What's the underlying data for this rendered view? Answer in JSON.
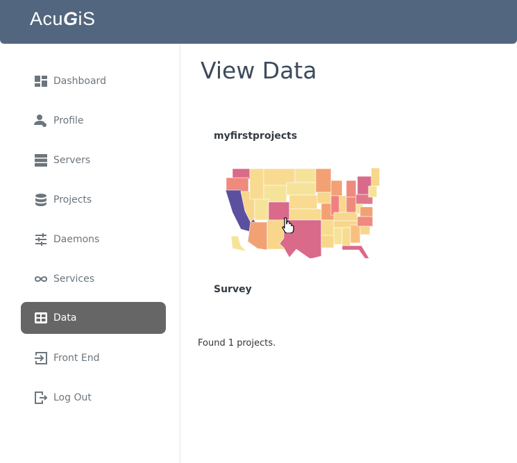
{
  "header": {
    "logo": "AcuGiS"
  },
  "sidebar": {
    "items": [
      {
        "label": "Dashboard",
        "icon": "dashboard-icon"
      },
      {
        "label": "Profile",
        "icon": "user-cog-icon"
      },
      {
        "label": "Servers",
        "icon": "server-icon"
      },
      {
        "label": "Projects",
        "icon": "database-icon"
      },
      {
        "label": "Daemons",
        "icon": "sliders-icon"
      },
      {
        "label": "Services",
        "icon": "infinity-icon"
      },
      {
        "label": "Data",
        "icon": "table-icon",
        "active": true
      },
      {
        "label": "Front End",
        "icon": "login-icon"
      },
      {
        "label": "Log Out",
        "icon": "logout-icon"
      }
    ]
  },
  "main": {
    "title": "View Data",
    "projects": [
      {
        "name": "myfirstprojects"
      },
      {
        "name": "Survey"
      }
    ],
    "found": "Found 1 projects."
  },
  "colors": {
    "header": "#52667f",
    "active": "#666666",
    "map_low": "#f6e39a",
    "map_mid": "#f2a174",
    "map_high": "#d96a8a",
    "map_top": "#5b4fa0"
  }
}
